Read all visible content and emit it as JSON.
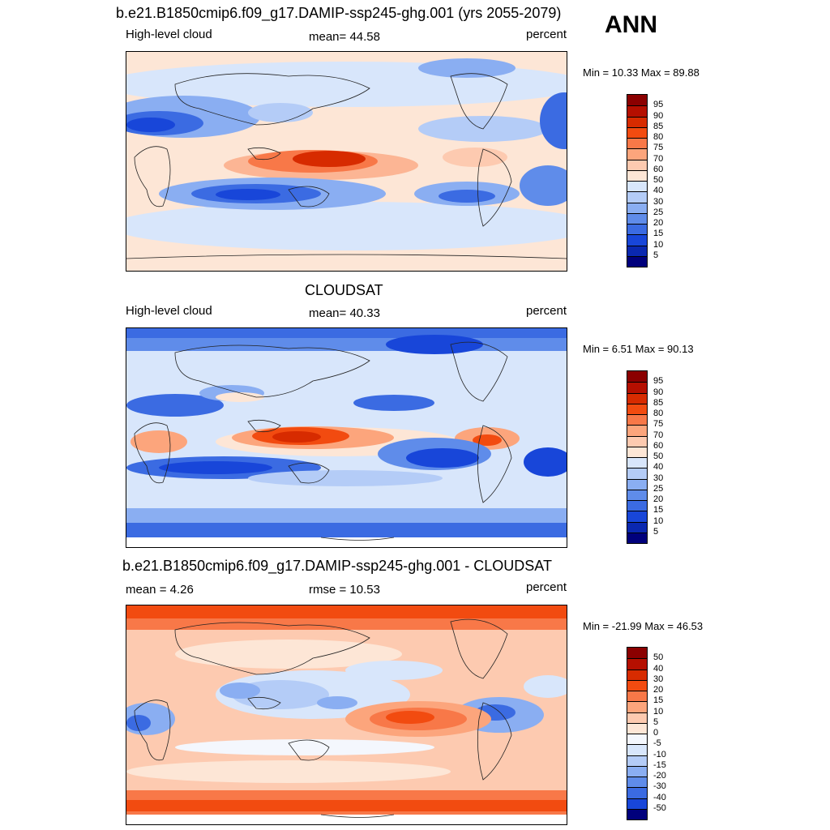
{
  "season": "ANN",
  "panels": [
    {
      "title": "b.e21.B1850cmip6.f09_g17.DAMIP-ssp245-ghg.001 (yrs 2055-2079)",
      "left": "High-level cloud",
      "center": "mean=  44.58",
      "right": "percent",
      "minmax": "Min =  10.33 Max =  89.88"
    },
    {
      "title": "CLOUDSAT",
      "left": "High-level cloud",
      "center": "mean=  40.33",
      "right": "percent",
      "minmax": "Min =   6.51 Max =  90.13"
    },
    {
      "title": "b.e21.B1850cmip6.f09_g17.DAMIP-ssp245-ghg.001 - CLOUDSAT",
      "left": "mean =   4.26",
      "center": "rmse =  10.53",
      "right": "percent",
      "minmax": "Min = -21.99 Max =  46.53"
    }
  ],
  "chart_data": [
    {
      "type": "heatmap",
      "title": "b.e21.B1850cmip6.f09_g17.DAMIP-ssp245-ghg.001 (yrs 2055-2079)",
      "variable": "High-level cloud",
      "units": "percent",
      "mean": 44.58,
      "min": 10.33,
      "max": 89.88,
      "levels": [
        "95",
        "90",
        "85",
        "80",
        "75",
        "70",
        "60",
        "50",
        "40",
        "30",
        "25",
        "20",
        "15",
        "10",
        "5"
      ],
      "colors": [
        "#8b0000",
        "#b50f00",
        "#d72b00",
        "#f24b10",
        "#f87848",
        "#fca57c",
        "#fdcab0",
        "#fde6d6",
        "#d8e6fb",
        "#b4ccf7",
        "#8aaef2",
        "#5f8cea",
        "#3b6be2",
        "#1846d9",
        "#0a28b0",
        "#00007c"
      ]
    },
    {
      "type": "heatmap",
      "title": "CLOUDSAT",
      "variable": "High-level cloud",
      "units": "percent",
      "mean": 40.33,
      "min": 6.51,
      "max": 90.13,
      "levels": [
        "95",
        "90",
        "85",
        "80",
        "75",
        "70",
        "60",
        "50",
        "40",
        "30",
        "25",
        "20",
        "15",
        "10",
        "5"
      ],
      "colors": [
        "#8b0000",
        "#b50f00",
        "#d72b00",
        "#f24b10",
        "#f87848",
        "#fca57c",
        "#fdcab0",
        "#fde6d6",
        "#d8e6fb",
        "#b4ccf7",
        "#8aaef2",
        "#5f8cea",
        "#3b6be2",
        "#1846d9",
        "#0a28b0",
        "#00007c"
      ]
    },
    {
      "type": "heatmap",
      "title": "b.e21.B1850cmip6.f09_g17.DAMIP-ssp245-ghg.001 - CLOUDSAT",
      "units": "percent",
      "mean": 4.26,
      "rmse": 10.53,
      "min": -21.99,
      "max": 46.53,
      "levels": [
        "50",
        "40",
        "30",
        "20",
        "15",
        "10",
        "5",
        "0",
        "-5",
        "-10",
        "-15",
        "-20",
        "-30",
        "-40",
        "-50"
      ],
      "colors": [
        "#8b0000",
        "#b50f00",
        "#d72b00",
        "#f24b10",
        "#f87848",
        "#fca57c",
        "#fdcab0",
        "#fde6d6",
        "#f4f7fd",
        "#d8e6fb",
        "#b4ccf7",
        "#8aaef2",
        "#5f8cea",
        "#3b6be2",
        "#1846d9",
        "#00007c"
      ]
    }
  ]
}
